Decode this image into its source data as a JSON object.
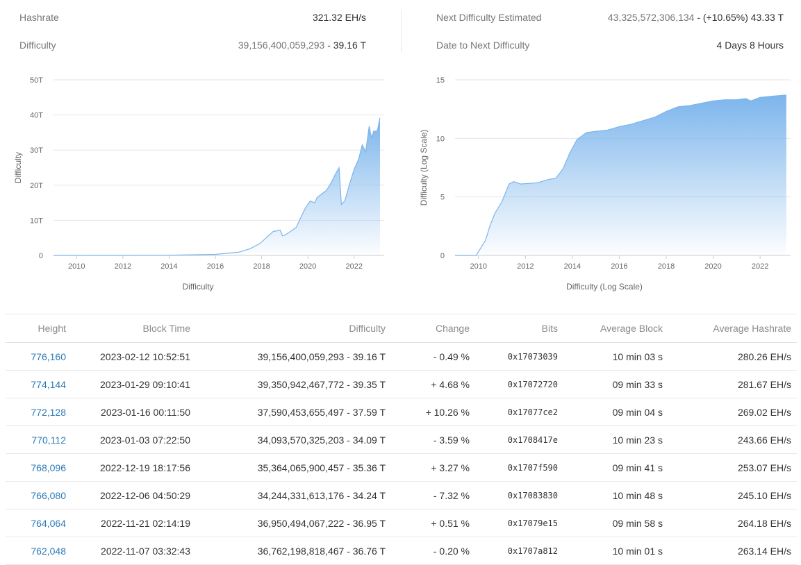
{
  "stats": {
    "hashrate_label": "Hashrate",
    "hashrate_value": "321.32 EH/s",
    "difficulty_label": "Difficulty",
    "difficulty_raw": "39,156,400,059,293",
    "difficulty_short": "- 39.16 T",
    "next_label": "Next Difficulty Estimated",
    "next_raw": "43,325,572,306,134",
    "next_short": "- (+10.65%) 43.33 T",
    "date_label": "Date to Next Difficulty",
    "date_value": "4 Days 8 Hours"
  },
  "chart_data": [
    {
      "type": "area",
      "title": "",
      "xlabel": "Difficulty",
      "ylabel": "Difficulty",
      "ylim": [
        0,
        50
      ],
      "yticks": [
        "0",
        "10T",
        "20T",
        "30T",
        "40T",
        "50T"
      ],
      "xticks": [
        "2010",
        "2012",
        "2014",
        "2016",
        "2018",
        "2020",
        "2022"
      ],
      "x": [
        2009.0,
        2014.0,
        2016.0,
        2017.0,
        2017.5,
        2017.9,
        2018.2,
        2018.5,
        2018.8,
        2018.9,
        2019.0,
        2019.2,
        2019.5,
        2019.7,
        2019.9,
        2020.1,
        2020.3,
        2020.4,
        2020.6,
        2020.8,
        2021.0,
        2021.2,
        2021.35,
        2021.45,
        2021.6,
        2021.8,
        2022.0,
        2022.2,
        2022.35,
        2022.5,
        2022.65,
        2022.75,
        2022.85,
        2023.0,
        2023.12
      ],
      "values": [
        0,
        0.05,
        0.3,
        0.9,
        1.9,
        3.3,
        5.0,
        6.8,
        7.2,
        5.6,
        5.8,
        6.6,
        8.0,
        10.9,
        13.6,
        15.5,
        15.0,
        16.5,
        17.5,
        18.5,
        20.6,
        23.3,
        25.0,
        14.5,
        15.6,
        20.3,
        24.5,
        27.5,
        31.5,
        29.5,
        36.8,
        33.5,
        35.4,
        35.4,
        39.2
      ]
    },
    {
      "type": "area",
      "title": "",
      "xlabel": "Difficulty (Log Scale)",
      "ylabel": "Difficulty (Log Scale)",
      "ylim": [
        0,
        15
      ],
      "yticks": [
        "0",
        "5",
        "10",
        "15"
      ],
      "xticks": [
        "2010",
        "2012",
        "2014",
        "2016",
        "2018",
        "2020",
        "2022"
      ],
      "x": [
        2009.0,
        2009.9,
        2010.3,
        2010.5,
        2010.7,
        2011.0,
        2011.3,
        2011.5,
        2011.8,
        2012.5,
        2013.0,
        2013.3,
        2013.6,
        2013.9,
        2014.2,
        2014.6,
        2015.0,
        2015.5,
        2016.0,
        2016.5,
        2017.0,
        2017.5,
        2018.0,
        2018.5,
        2019.0,
        2019.5,
        2020.0,
        2020.5,
        2021.0,
        2021.4,
        2021.6,
        2022.0,
        2022.5,
        2023.12
      ],
      "values": [
        0,
        0,
        1.3,
        2.6,
        3.6,
        4.6,
        6.1,
        6.3,
        6.1,
        6.2,
        6.5,
        6.6,
        7.4,
        8.8,
        9.9,
        10.5,
        10.6,
        10.7,
        11.0,
        11.2,
        11.5,
        11.8,
        12.3,
        12.7,
        12.8,
        13.0,
        13.2,
        13.3,
        13.3,
        13.4,
        13.2,
        13.5,
        13.6,
        13.7
      ]
    }
  ],
  "table": {
    "headers": [
      "Height",
      "Block Time",
      "Difficulty",
      "Change",
      "Bits",
      "Average Block",
      "Average Hashrate"
    ],
    "rows": [
      {
        "height": "776,160",
        "time": "2023-02-12 10:52:51",
        "difficulty": "39,156,400,059,293 - 39.16 T",
        "change": "- 0.49 %",
        "dir": "neg",
        "bits": "0x17073039",
        "avg_block": "10 min 03 s",
        "avg_hash": "280.26 EH/s"
      },
      {
        "height": "774,144",
        "time": "2023-01-29 09:10:41",
        "difficulty": "39,350,942,467,772 - 39.35 T",
        "change": "+ 4.68 %",
        "dir": "pos",
        "bits": "0x17072720",
        "avg_block": "09 min 33 s",
        "avg_hash": "281.67 EH/s"
      },
      {
        "height": "772,128",
        "time": "2023-01-16 00:11:50",
        "difficulty": "37,590,453,655,497 - 37.59 T",
        "change": "+ 10.26 %",
        "dir": "pos",
        "bits": "0x17077ce2",
        "avg_block": "09 min 04 s",
        "avg_hash": "269.02 EH/s"
      },
      {
        "height": "770,112",
        "time": "2023-01-03 07:22:50",
        "difficulty": "34,093,570,325,203 - 34.09 T",
        "change": "- 3.59 %",
        "dir": "neg",
        "bits": "0x1708417e",
        "avg_block": "10 min 23 s",
        "avg_hash": "243.66 EH/s"
      },
      {
        "height": "768,096",
        "time": "2022-12-19 18:17:56",
        "difficulty": "35,364,065,900,457 - 35.36 T",
        "change": "+ 3.27 %",
        "dir": "pos",
        "bits": "0x1707f590",
        "avg_block": "09 min 41 s",
        "avg_hash": "253.07 EH/s"
      },
      {
        "height": "766,080",
        "time": "2022-12-06 04:50:29",
        "difficulty": "34,244,331,613,176 - 34.24 T",
        "change": "- 7.32 %",
        "dir": "neg",
        "bits": "0x17083830",
        "avg_block": "10 min 48 s",
        "avg_hash": "245.10 EH/s"
      },
      {
        "height": "764,064",
        "time": "2022-11-21 02:14:19",
        "difficulty": "36,950,494,067,222 - 36.95 T",
        "change": "+ 0.51 %",
        "dir": "pos",
        "bits": "0x17079e15",
        "avg_block": "09 min 58 s",
        "avg_hash": "264.18 EH/s"
      },
      {
        "height": "762,048",
        "time": "2022-11-07 03:32:43",
        "difficulty": "36,762,198,818,467 - 36.76 T",
        "change": "- 0.20 %",
        "dir": "neg",
        "bits": "0x1707a812",
        "avg_block": "10 min 01 s",
        "avg_hash": "263.14 EH/s"
      }
    ]
  },
  "colors": {
    "accent_link": "#2a7ab8",
    "positive": "#2d8c1e",
    "negative": "#e02020",
    "area_top": "#7cb5ec",
    "gridline": "#e6e6e6"
  }
}
